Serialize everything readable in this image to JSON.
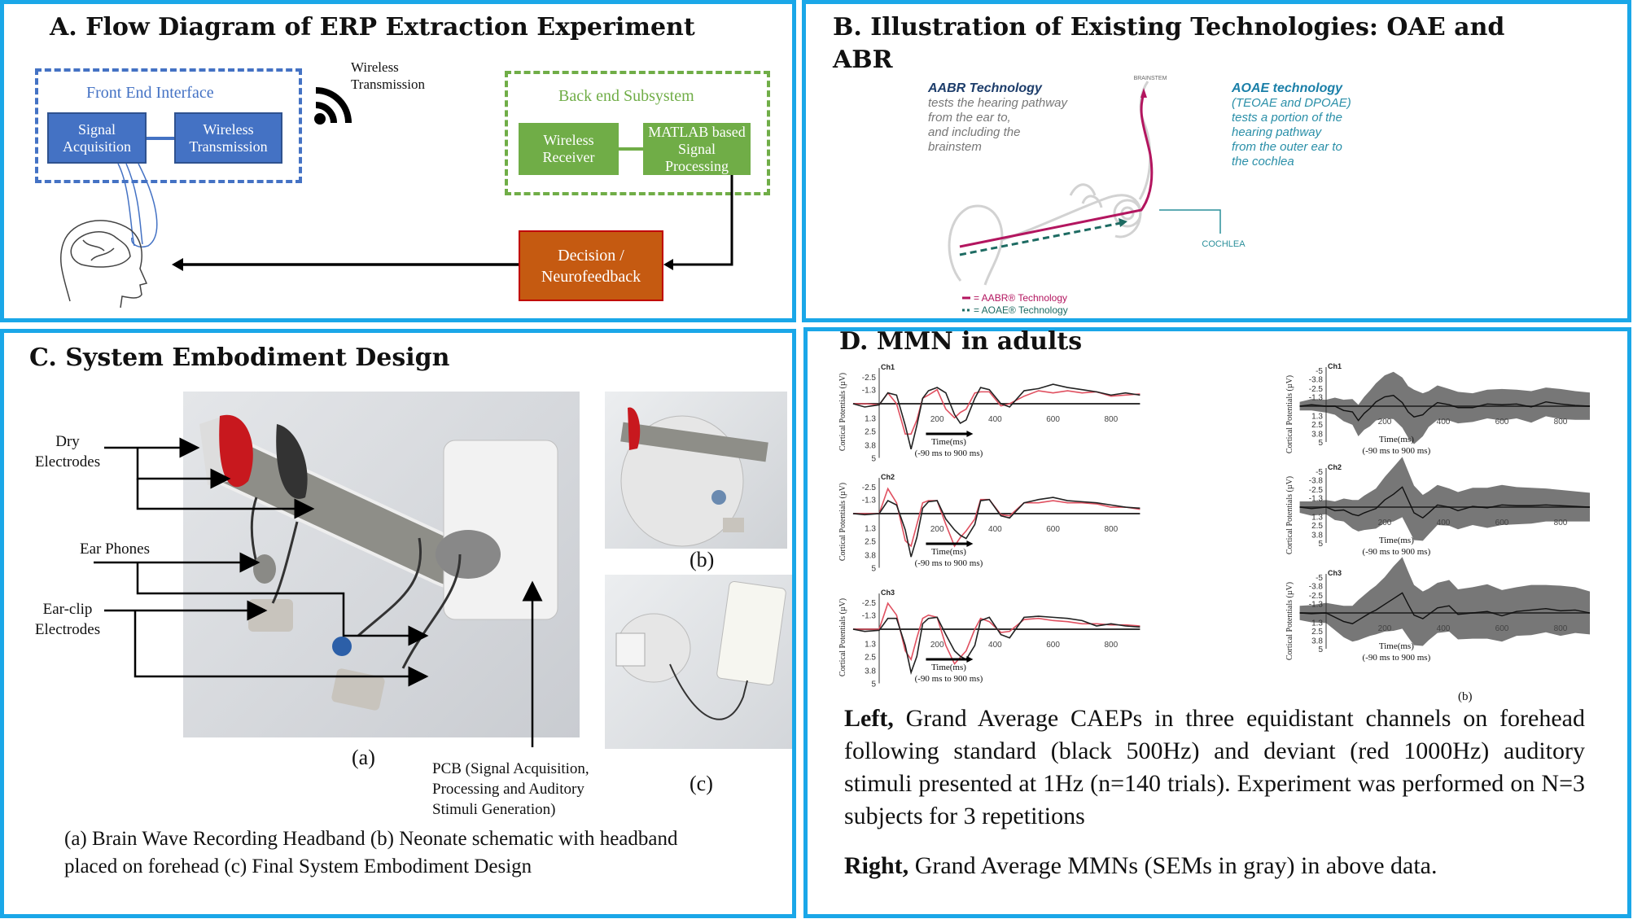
{
  "colors": {
    "panel_border": "#1aa7e8",
    "front_end": "#4472c4",
    "back_end": "#70ad47",
    "decision": "#c55a11",
    "aabr": "#b3155f",
    "aoae": "#1d6b62",
    "deviant": "#e05060",
    "standard": "#222222",
    "sem": "#777777"
  },
  "panel_a": {
    "title": "A. Flow Diagram of ERP Extraction Experiment",
    "front_end": {
      "label": "Front End Interface",
      "blocks": [
        "Signal Acquisition",
        "Wireless Transmission"
      ]
    },
    "wireless_label": "Wireless Transmission",
    "wireless_icon": "wifi-icon",
    "back_end": {
      "label": "Back end Subsystem",
      "blocks": [
        "Wireless Receiver",
        "MATLAB based Signal Processing"
      ]
    },
    "decision": "Decision / Neurofeedback",
    "head_icon": "brain-head-icon"
  },
  "panel_b": {
    "title_line1": "B. Illustration of  Existing Technologies: OAE and",
    "title_line2": "ABR",
    "aabr": {
      "heading": "AABR Technology",
      "lines": [
        "tests the hearing pathway",
        "from the ear to,",
        "and including the",
        "brainstem"
      ]
    },
    "aoae": {
      "heading": "AOAE technology",
      "lines": [
        "(TEOAE and DPOAE)",
        "tests a portion of the",
        "hearing pathway",
        "from the outer ear to",
        "the cochlea"
      ]
    },
    "brainstem_label": "BRAINSTEM",
    "cochlea_label": "COCHLEA",
    "legend": [
      "= AABR® Technology",
      "= AOAE® Technology"
    ]
  },
  "panel_c": {
    "title": "C. System Embodiment Design",
    "labels": {
      "dry_1": "Dry",
      "dry_2": "Electrodes",
      "ear_phones": "Ear Phones",
      "earclip_1": "Ear-clip",
      "earclip_2": "Electrodes",
      "pcb": [
        "PCB  (Signal Acquisition,",
        "Processing and Auditory",
        "Stimuli Generation)"
      ]
    },
    "sublabels": {
      "a": "(a)",
      "b": "(b)",
      "c": "(c)"
    },
    "caption": [
      "(a) Brain Wave Recording Headband (b) Neonate schematic with headband",
      "placed on forehead (c) Final System Embodiment Design"
    ]
  },
  "panel_d": {
    "title": "D. MMN in adults",
    "sublabel_b": "(b)",
    "left_text": {
      "bold": "Left,",
      "body": " Grand Average CAEPs in three equidistant channels on forehead following standard (black 500Hz) and deviant (red 1000Hz) auditory stimuli presented at 1Hz (n=140 trials). Experiment was performed on N=3 subjects for 3 repetitions"
    },
    "right_text": {
      "bold": "Right,",
      "body": " Grand Average MMNs (SEMs in gray) in above data."
    }
  },
  "chart_data": [
    {
      "type": "line",
      "group": "caep",
      "ylabel": "Cortical Potentials (µV)",
      "xlabel": "Time(ms)",
      "xrange_label": "(-90 ms to 900 ms)",
      "xlim": [
        -90,
        900
      ],
      "ylim": [
        5,
        -3
      ],
      "y_inverted": true,
      "xticks": [
        200,
        400,
        600,
        800
      ],
      "yticks": [
        -2.5,
        -1.3,
        1.3,
        2.5,
        3.8,
        5
      ],
      "x": [
        -90,
        -50,
        0,
        30,
        60,
        90,
        110,
        130,
        150,
        170,
        200,
        230,
        260,
        280,
        300,
        330,
        350,
        380,
        420,
        450,
        500,
        550,
        600,
        650,
        700,
        750,
        800,
        850,
        900
      ],
      "channels": [
        {
          "name": "Ch1",
          "standard": [
            0,
            0.3,
            0.1,
            -1.0,
            -0.8,
            2.0,
            4.2,
            2.0,
            -0.5,
            -1.2,
            -1.5,
            -1.0,
            1.0,
            1.8,
            1.5,
            -0.5,
            -1.5,
            -1.3,
            0,
            0.3,
            -1.2,
            -1.4,
            -1.8,
            -1.5,
            -1.3,
            -1.1,
            -0.8,
            -1.0,
            -0.8
          ],
          "deviant": [
            0,
            0,
            0.1,
            -1.0,
            0,
            2.8,
            2.8,
            1.5,
            -0.5,
            -0.8,
            -1.3,
            0.5,
            1.3,
            0.8,
            0.5,
            -1.0,
            -1.1,
            -1.1,
            0.2,
            0,
            -0.7,
            -1.2,
            -1.0,
            -1.2,
            -1.0,
            -1.1,
            -0.7,
            -0.8,
            -0.9
          ]
        },
        {
          "name": "Ch2",
          "standard": [
            0,
            0.1,
            0,
            -1.2,
            -0.8,
            1.5,
            4.0,
            2.2,
            -0.5,
            -1.1,
            -1.2,
            0.5,
            1.5,
            2.0,
            2.3,
            1.0,
            -1.2,
            -1.3,
            0.2,
            0.4,
            -1.0,
            -1.3,
            -1.5,
            -1.2,
            -1.1,
            -1.0,
            -0.8,
            -0.6,
            -0.5
          ],
          "deviant": [
            0,
            0,
            0,
            -2.3,
            -1.0,
            2.5,
            3.0,
            1.0,
            -1.0,
            -1.2,
            -1.2,
            1.0,
            3.0,
            2.2,
            1.6,
            0.5,
            -1.3,
            -1.3,
            0.1,
            0.2,
            -1.0,
            -1.0,
            -1.2,
            -1.0,
            -1.0,
            -0.9,
            -0.6,
            -0.6,
            -0.4
          ]
        },
        {
          "name": "Ch3",
          "standard": [
            0,
            0.2,
            0.1,
            -1.0,
            -1.0,
            1.5,
            4.0,
            2.5,
            -0.5,
            -1.0,
            -1.1,
            0.5,
            2.0,
            2.5,
            2.8,
            1.5,
            -0.8,
            -1.1,
            0.5,
            0.8,
            -1.1,
            -1.2,
            -1.1,
            -1.0,
            -0.8,
            -0.3,
            -0.5,
            -0.3,
            -0.2
          ],
          "deviant": [
            0,
            0,
            0,
            -2.4,
            -1.3,
            2.0,
            2.8,
            0.8,
            -1.0,
            -1.3,
            -1.1,
            1.5,
            3.2,
            2.6,
            2.0,
            0,
            -1.0,
            -0.7,
            0.3,
            0.2,
            -0.9,
            -1.0,
            -0.8,
            -0.7,
            -0.5,
            -0.5,
            -0.4,
            -0.4,
            -0.3
          ]
        }
      ]
    },
    {
      "type": "area",
      "group": "mmn",
      "ylabel": "Cortical Potentials (µV)",
      "xlabel": "Time(ms)",
      "xrange_label": "(-90 ms to 900 ms)",
      "xlim": [
        -90,
        900
      ],
      "ylim": [
        5,
        -5
      ],
      "y_inverted": true,
      "xticks": [
        200,
        400,
        600,
        800
      ],
      "yticks": [
        -5,
        -3.8,
        -2.5,
        -1.3,
        1.3,
        2.5,
        3.8,
        5
      ],
      "x": [
        -90,
        -50,
        0,
        30,
        60,
        90,
        110,
        130,
        150,
        170,
        200,
        230,
        260,
        280,
        300,
        330,
        350,
        380,
        420,
        450,
        500,
        550,
        600,
        650,
        700,
        750,
        800,
        850,
        900
      ],
      "channels": [
        {
          "name": "Ch1",
          "mmn": [
            0,
            -0.2,
            0,
            0,
            0.6,
            0.8,
            2.0,
            1.0,
            0.3,
            -0.6,
            -1.3,
            -1.5,
            -0.5,
            0.8,
            1.5,
            1.2,
            0.4,
            -0.5,
            -0.2,
            0.2,
            0.2,
            -0.3,
            -0.2,
            -0.3,
            0.1,
            -0.6,
            -0.3,
            -0.1,
            0
          ],
          "sem": [
            0.6,
            0.8,
            0.9,
            1.2,
            1.5,
            1.8,
            2.2,
            2.3,
            2.5,
            2.6,
            3.0,
            3.3,
            3.5,
            3.6,
            3.8,
            3.0,
            2.5,
            2.4,
            2.2,
            2.2,
            2.0,
            2.0,
            2.2,
            2.0,
            2.2,
            2.0,
            2.1,
            2.0,
            1.9
          ]
        },
        {
          "name": "Ch2",
          "mmn": [
            0,
            0.2,
            0,
            0.5,
            0.4,
            1.0,
            1.2,
            0.8,
            0.5,
            0.2,
            -1.0,
            -1.8,
            -2.8,
            -1.0,
            0.8,
            1.5,
            0.8,
            -0.3,
            0,
            0.5,
            -0.1,
            0.1,
            -0.3,
            -0.2,
            -0.2,
            -0.3,
            -0.2,
            -0.1,
            0
          ],
          "sem": [
            0.8,
            1.0,
            1.0,
            1.3,
            1.6,
            2.0,
            2.2,
            2.4,
            2.6,
            2.8,
            3.2,
            3.8,
            4.2,
            4.0,
            3.8,
            3.2,
            3.0,
            2.8,
            2.6,
            2.6,
            2.6,
            2.8,
            2.8,
            2.6,
            2.5,
            2.3,
            2.2,
            2.1,
            2.0
          ]
        },
        {
          "name": "Ch3",
          "mmn": [
            0,
            0.1,
            0,
            0.6,
            1.2,
            1.5,
            1.0,
            0.5,
            0,
            -0.4,
            -1.2,
            -2.0,
            -2.8,
            -1.2,
            0.3,
            0.8,
            0.2,
            -0.7,
            -1.0,
            0.2,
            0,
            -0.2,
            0.4,
            -0.2,
            -0.4,
            -0.6,
            -0.3,
            -0.4,
            0
          ],
          "sem": [
            1.0,
            1.2,
            1.4,
            1.8,
            2.2,
            2.5,
            2.8,
            3.0,
            3.2,
            3.4,
            3.8,
            4.5,
            5.0,
            4.6,
            4.2,
            3.8,
            3.6,
            3.5,
            3.6,
            3.5,
            3.6,
            3.8,
            3.6,
            3.4,
            3.5,
            3.3,
            3.5,
            3.2,
            3.0
          ]
        }
      ]
    }
  ]
}
